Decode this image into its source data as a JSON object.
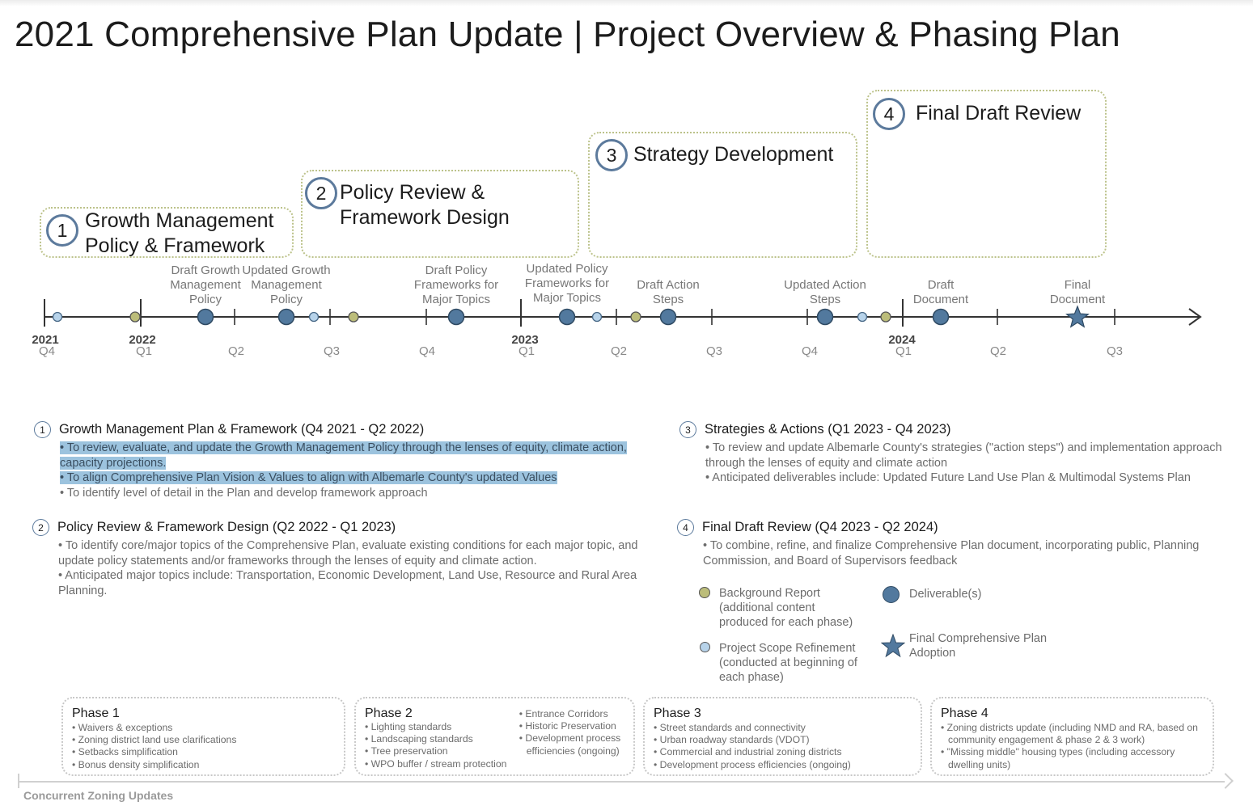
{
  "title": "2021 Comprehensive Plan Update | Project Overview & Phasing Plan",
  "phases": [
    {
      "num": "1",
      "line1": "Growth Management",
      "line2": "Policy & Framework"
    },
    {
      "num": "2",
      "line1": "Policy Review &",
      "line2": "Framework Design"
    },
    {
      "num": "3",
      "line1": "Strategy Development",
      "line2": ""
    },
    {
      "num": "4",
      "line1": "Final Draft Review",
      "line2": ""
    }
  ],
  "timeline": {
    "ticks": [
      {
        "year": "2021",
        "q": "Q4"
      },
      {
        "year": "2022",
        "q": "Q1"
      },
      {
        "year": "",
        "q": "Q2"
      },
      {
        "year": "",
        "q": "Q3"
      },
      {
        "year": "",
        "q": "Q4"
      },
      {
        "year": "2023",
        "q": "Q1"
      },
      {
        "year": "",
        "q": "Q2"
      },
      {
        "year": "",
        "q": "Q3"
      },
      {
        "year": "",
        "q": "Q4"
      },
      {
        "year": "2024",
        "q": "Q1"
      },
      {
        "year": "",
        "q": "Q2"
      },
      {
        "year": "",
        "q": "Q3"
      }
    ],
    "milestones": [
      {
        "type": "scope",
        "lines": []
      },
      {
        "type": "background",
        "lines": []
      },
      {
        "type": "deliverable",
        "lines": [
          "Draft Growth",
          "Management",
          "Policy"
        ]
      },
      {
        "type": "deliverable",
        "lines": [
          "Updated Growth",
          "Management",
          "Policy"
        ]
      },
      {
        "type": "scope",
        "lines": []
      },
      {
        "type": "background",
        "lines": []
      },
      {
        "type": "deliverable",
        "lines": [
          "Draft Policy",
          "Frameworks for",
          "Major Topics"
        ]
      },
      {
        "type": "deliverable",
        "lines": [
          "Updated Policy",
          "Frameworks for",
          "Major Topics"
        ]
      },
      {
        "type": "scope",
        "lines": []
      },
      {
        "type": "background",
        "lines": []
      },
      {
        "type": "deliverable",
        "lines": [
          "Draft Action",
          "Steps"
        ]
      },
      {
        "type": "deliverable",
        "lines": [
          "Updated Action",
          "Steps"
        ]
      },
      {
        "type": "scope",
        "lines": []
      },
      {
        "type": "background",
        "lines": []
      },
      {
        "type": "deliverable",
        "lines": [
          "Draft",
          "Document"
        ]
      },
      {
        "type": "final",
        "lines": [
          "Final",
          "Document"
        ]
      }
    ]
  },
  "descriptions": [
    {
      "num": "1",
      "heading": "Growth Management Plan & Framework (Q4 2021 - Q2 2022)",
      "bullets": [
        "• To review, evaluate, and update the Growth Management Policy through the lenses of equity, climate action, capacity projections.",
        "• To align Comprehensive Plan Vision & Values to align with Albemarle County's updated Values",
        "• To identify level of detail in the Plan and develop framework approach"
      ]
    },
    {
      "num": "2",
      "heading": "Policy Review & Framework Design (Q2 2022 - Q1 2023)",
      "bullets": [
        "• To identify core/major topics of the Comprehensive Plan, evaluate existing conditions for each major topic, and update policy statements and/or frameworks through the lenses of equity and climate action.",
        "• Anticipated major topics include: Transportation, Economic Development, Land Use, Resource and Rural Area Planning."
      ]
    },
    {
      "num": "3",
      "heading": "Strategies & Actions (Q1 2023 - Q4 2023)",
      "bullets": [
        "• To review and update Albemarle County's strategies (\"action steps\") and implementation approach through the lenses of equity and climate action",
        "• Anticipated deliverables include: Updated Future Land Use Plan & Multimodal Systems Plan"
      ]
    },
    {
      "num": "4",
      "heading": "Final Draft Review (Q4 2023 - Q2 2024)",
      "bullets": [
        "• To combine, refine, and finalize Comprehensive Plan document, incorporating public, Planning Commission, and Board of Supervisors feedback"
      ]
    }
  ],
  "legend": {
    "background": "Background Report (additional content produced for each phase)",
    "scope": "Project Scope Refinement (conducted at beginning of each phase)",
    "deliverable": "Deliverable(s)",
    "final": "Final Comprehensive Plan Adoption"
  },
  "zoning": {
    "caption": "Concurrent Zoning Updates",
    "phases": [
      {
        "title": "Phase 1",
        "col1": [
          "Waivers & exceptions",
          "Zoning district land use clarifications",
          "Setbacks simplification",
          "Bonus density simplification"
        ],
        "col2": []
      },
      {
        "title": "Phase 2",
        "col1": [
          "Lighting standards",
          "Landscaping standards",
          "Tree preservation",
          "WPO buffer / stream protection"
        ],
        "col2": [
          "Entrance Corridors",
          "Historic Preservation",
          "Development process efficiencies (ongoing)"
        ]
      },
      {
        "title": "Phase 3",
        "col1": [
          "Street standards and connectivity",
          "Urban roadway standards (VDOT)",
          "Commercial and industrial zoning districts",
          "Development process efficiencies (ongoing)"
        ],
        "col2": []
      },
      {
        "title": "Phase 4",
        "col1": [
          "Zoning districts update (including NMD and RA, based on community engagement & phase 2 & 3 work)",
          "\"Missing middle\" housing types (including accessory dwelling units)"
        ],
        "col2": []
      }
    ]
  },
  "colors": {
    "deliverable": "#52799e",
    "scope": "#b7d3ea",
    "background": "#bcbd7a",
    "dotted_border": "#bcc28a",
    "highlight": "#9cc3de",
    "ring": "#5c7a9c"
  }
}
